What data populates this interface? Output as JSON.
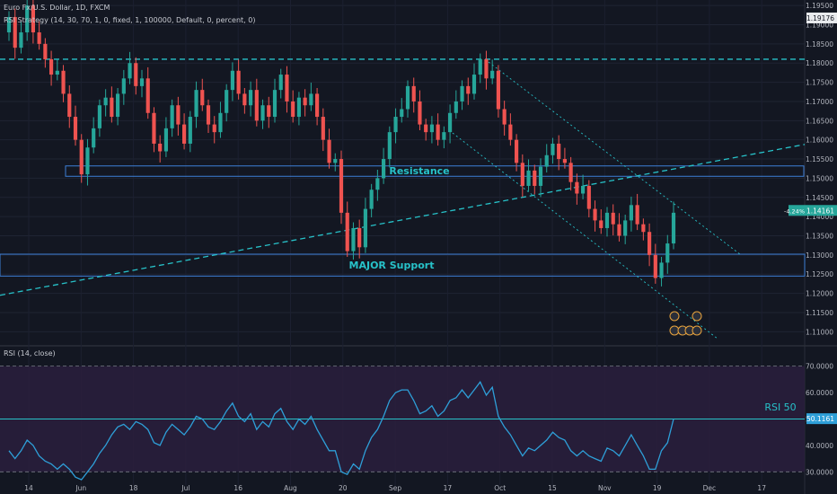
{
  "header": {
    "title": "Euro Fx/U.S. Dollar, 1D, FXCM",
    "strategy": "RSI Strategy (14, 30, 70, 1, 0, fixed, 1, 100000, Default, 0, percent, 0)",
    "rsi_title": "RSI (14, close)"
  },
  "colors": {
    "background": "#131722",
    "up": "#26a69a",
    "down": "#ef5350",
    "cyan": "#27c2c9",
    "rsi_line": "#2e9fd8",
    "rsi_band": "#2a1f3d",
    "box": "#3d7fd6"
  },
  "chart_data": [
    {
      "type": "candlestick",
      "title": "Euro Fx/U.S. Dollar, 1D, FXCM",
      "ylim": [
        1.1075,
        1.1955
      ],
      "y_ticks": [
        "1.19500",
        "1.19000",
        "1.18500",
        "1.18000",
        "1.17500",
        "1.17000",
        "1.16500",
        "1.16000",
        "1.15500",
        "1.15000",
        "1.14500",
        "1.14000",
        "1.13500",
        "1.13000",
        "1.12500",
        "1.12000",
        "1.11500",
        "1.11000"
      ],
      "x_ticks": [
        "14",
        "Jun",
        "18",
        "Jul",
        "16",
        "Aug",
        "20",
        "Sep",
        "17",
        "Oct",
        "15",
        "Nov",
        "19",
        "Dec",
        "17"
      ],
      "top_price_label": "1.19176",
      "last_price_label": "1.14161",
      "change_label": "-4.24%",
      "annotations": {
        "resistance": "Resistance",
        "support": "MAJOR Support"
      },
      "levels": {
        "resistance_dashed": 1.181,
        "resistance_box": [
          1.1505,
          1.1532
        ],
        "support_box": [
          1.1245,
          1.1302
        ]
      },
      "closes": [
        1.192,
        1.184,
        1.188,
        1.195,
        1.188,
        1.185,
        1.181,
        1.177,
        1.178,
        1.172,
        1.166,
        1.16,
        1.151,
        1.158,
        1.163,
        1.169,
        1.171,
        1.166,
        1.172,
        1.176,
        1.18,
        1.174,
        1.176,
        1.167,
        1.159,
        1.157,
        1.163,
        1.169,
        1.164,
        1.159,
        1.166,
        1.173,
        1.169,
        1.164,
        1.162,
        1.167,
        1.173,
        1.178,
        1.172,
        1.169,
        1.173,
        1.165,
        1.169,
        1.166,
        1.173,
        1.177,
        1.17,
        1.166,
        1.171,
        1.169,
        1.172,
        1.166,
        1.16,
        1.154,
        1.155,
        1.141,
        1.131,
        1.137,
        1.132,
        1.142,
        1.147,
        1.15,
        1.155,
        1.162,
        1.166,
        1.168,
        1.174,
        1.17,
        1.164,
        1.162,
        1.164,
        1.16,
        1.162,
        1.167,
        1.17,
        1.174,
        1.172,
        1.177,
        1.181,
        1.176,
        1.178,
        1.168,
        1.164,
        1.16,
        1.154,
        1.148,
        1.152,
        1.148,
        1.153,
        1.156,
        1.159,
        1.155,
        1.154,
        1.149,
        1.146,
        1.148,
        1.142,
        1.139,
        1.137,
        1.141,
        1.138,
        1.135,
        1.139,
        1.143,
        1.138,
        1.136,
        1.13,
        1.124,
        1.128,
        1.133,
        1.141
      ]
    },
    {
      "type": "line",
      "title": "RSI (14, close)",
      "ylim": [
        25,
        76
      ],
      "y_ticks": [
        "70.0000",
        "60.0000",
        "50.0000",
        "40.0000",
        "30.0000"
      ],
      "band": [
        30,
        70
      ],
      "level_label": "RSI 50",
      "last_value_label": "50.1161",
      "values": [
        38,
        35,
        38,
        42,
        40,
        36,
        34,
        33,
        31,
        33,
        31,
        28,
        27,
        30,
        33,
        37,
        40,
        44,
        47,
        48,
        46,
        49,
        48,
        46,
        41,
        40,
        45,
        48,
        46,
        44,
        47,
        51,
        50,
        47,
        46,
        49,
        53,
        56,
        51,
        49,
        52,
        46,
        49,
        47,
        52,
        54,
        49,
        46,
        50,
        48,
        51,
        46,
        42,
        38,
        38,
        30,
        29,
        33,
        31,
        38,
        43,
        46,
        51,
        57,
        60,
        61,
        61,
        57,
        52,
        53,
        55,
        51,
        53,
        57,
        58,
        61,
        58,
        61,
        64,
        59,
        62,
        51,
        47,
        44,
        40,
        36,
        39,
        38,
        40,
        42,
        45,
        43,
        42,
        38,
        36,
        38,
        36,
        35,
        34,
        39,
        38,
        36,
        40,
        44,
        40,
        36,
        31,
        31,
        38,
        41,
        50
      ]
    }
  ]
}
